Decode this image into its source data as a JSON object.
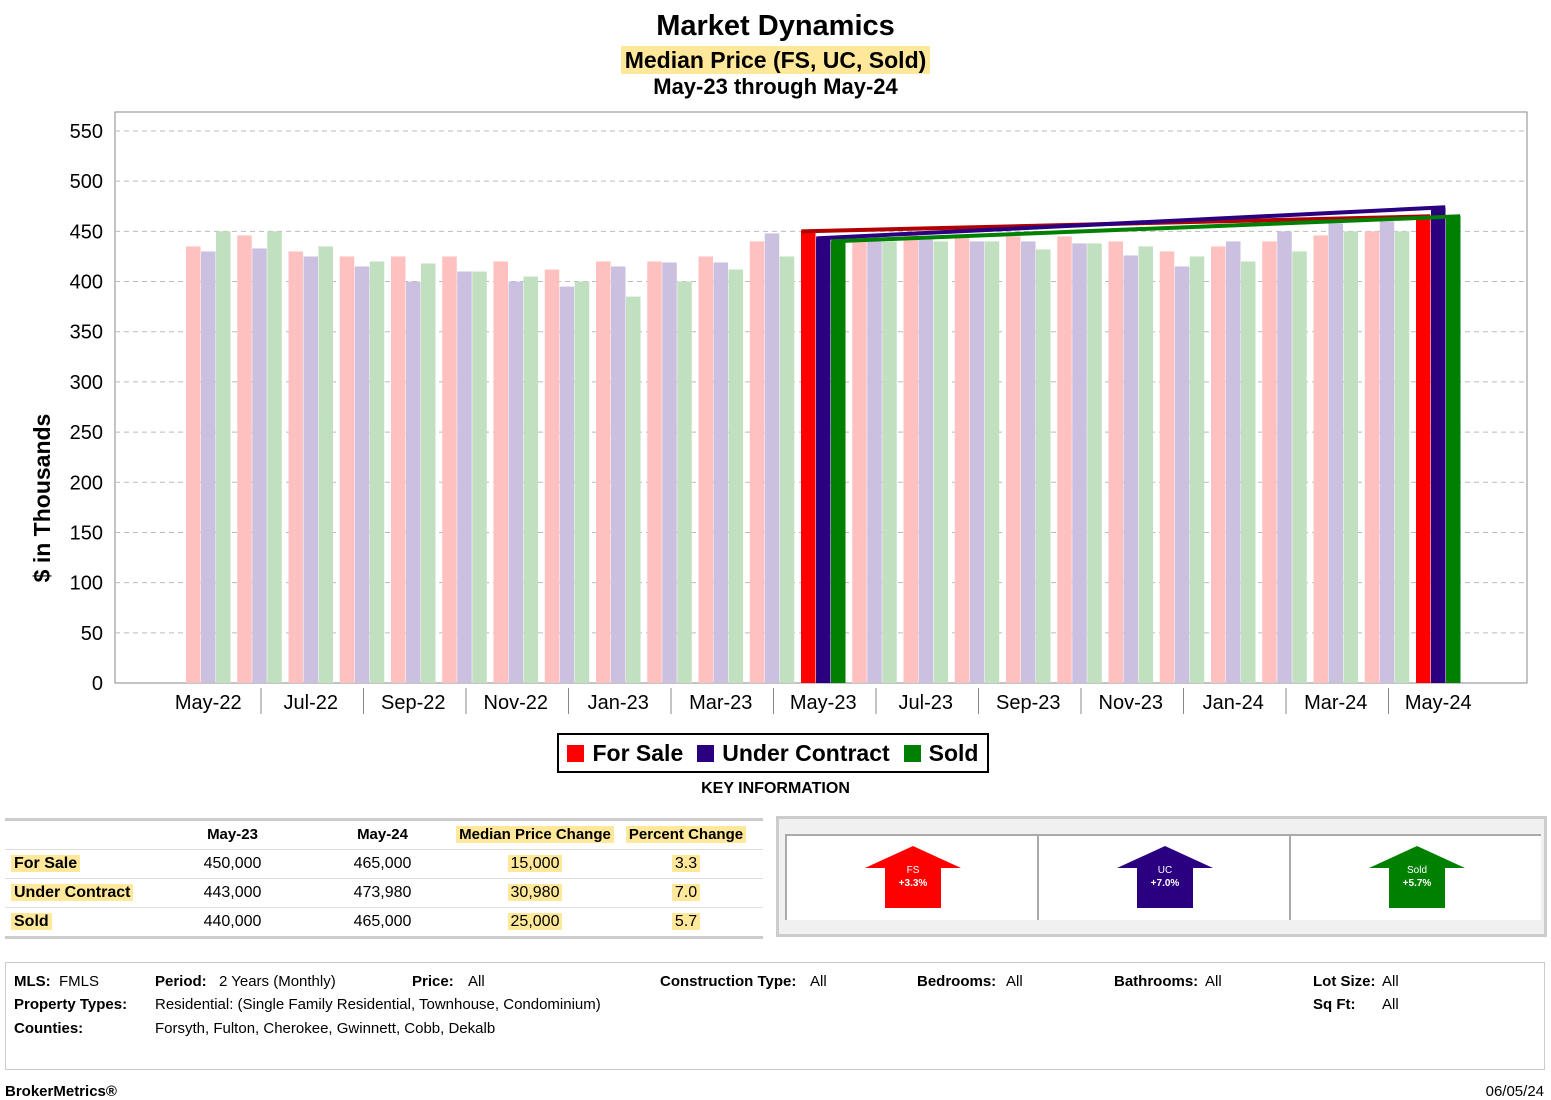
{
  "title": "Market Dynamics",
  "subtitle": "Median Price (FS, UC, Sold)",
  "period_line": "May-23 through May-24",
  "chart_data": {
    "type": "bar",
    "ylabel": "$ in Thousands",
    "ylim": [
      0,
      550
    ],
    "yticks": [
      0,
      50,
      100,
      150,
      200,
      250,
      300,
      350,
      400,
      450,
      500,
      550
    ],
    "grid": true,
    "categories": [
      "May-22",
      "Jun-22",
      "Jul-22",
      "Aug-22",
      "Sep-22",
      "Oct-22",
      "Nov-22",
      "Dec-22",
      "Jan-23",
      "Feb-23",
      "Mar-23",
      "Apr-23",
      "May-23",
      "Jun-23",
      "Jul-23",
      "Aug-23",
      "Sep-23",
      "Oct-23",
      "Nov-23",
      "Dec-23",
      "Jan-24",
      "Feb-24",
      "Mar-24",
      "Apr-24",
      "May-24"
    ],
    "tick_labels": [
      "May-22",
      "Jul-22",
      "Sep-22",
      "Nov-22",
      "Jan-23",
      "Mar-23",
      "May-23",
      "Jul-23",
      "Sep-23",
      "Nov-23",
      "Jan-24",
      "Mar-24",
      "May-24"
    ],
    "series": [
      {
        "name": "For Sale",
        "color": "#ff0000",
        "faded_color": "#ffc0c0",
        "values": [
          435,
          446,
          430,
          425,
          425,
          425,
          420,
          412,
          420,
          420,
          425,
          440,
          450,
          445,
          448,
          445,
          445,
          445,
          440,
          430,
          435,
          440,
          446,
          450,
          465
        ]
      },
      {
        "name": "Under Contract",
        "color": "#2a0080",
        "faded_color": "#cbc0e0",
        "values": [
          430,
          433,
          425,
          415,
          400,
          410,
          400,
          395,
          415,
          419,
          419,
          448,
          443,
          440,
          442,
          440,
          440,
          438,
          426,
          415,
          440,
          450,
          458,
          460,
          473.98
        ]
      },
      {
        "name": "Sold",
        "color": "#008000",
        "faded_color": "#c0e0c0",
        "values": [
          450,
          450,
          435,
          420,
          418,
          410,
          405,
          400,
          385,
          400,
          412,
          425,
          440,
          440,
          440,
          440,
          432,
          438,
          435,
          425,
          420,
          430,
          450,
          450,
          465
        ]
      }
    ],
    "highlight_range": [
      "May-23",
      "May-24"
    ],
    "legend": "bottom-center"
  },
  "key_info": {
    "title": "KEY INFORMATION",
    "headers": [
      "May-23",
      "May-24",
      "Median Price Change",
      "Percent Change"
    ],
    "rows": [
      {
        "label": "For Sale",
        "v1": "450,000",
        "v2": "465,000",
        "change": "15,000",
        "pct": "3.3"
      },
      {
        "label": "Under Contract",
        "v1": "443,000",
        "v2": "473,980",
        "change": "30,980",
        "pct": "7.0"
      },
      {
        "label": "Sold",
        "v1": "440,000",
        "v2": "465,000",
        "change": "25,000",
        "pct": "5.7"
      }
    ]
  },
  "arrows": [
    {
      "label": "FS",
      "pct": "+3.3%",
      "color": "#ff0000"
    },
    {
      "label": "UC",
      "pct": "+7.0%",
      "color": "#2a0080"
    },
    {
      "label": "Sold",
      "pct": "+5.7%",
      "color": "#008000"
    }
  ],
  "info": {
    "mls_label": "MLS:",
    "mls": "FMLS",
    "period_label": "Period:",
    "period": "2 Years (Monthly)",
    "price_label": "Price:",
    "price": "All",
    "construction_label": "Construction Type:",
    "construction": "All",
    "bedrooms_label": "Bedrooms:",
    "bedrooms": "All",
    "bathrooms_label": "Bathrooms:",
    "bathrooms": "All",
    "lot_label": "Lot Size:",
    "lot": "All",
    "property_label": "Property Types:",
    "property": "Residential: (Single Family Residential, Townhouse, Condominium)",
    "sqft_label": "Sq Ft:",
    "sqft": "All",
    "counties_label": "Counties:",
    "counties": "Forsyth, Fulton, Cherokee, Gwinnett, Cobb, Dekalb"
  },
  "footer": {
    "brand": "BrokerMetrics®",
    "date": "06/05/24"
  }
}
